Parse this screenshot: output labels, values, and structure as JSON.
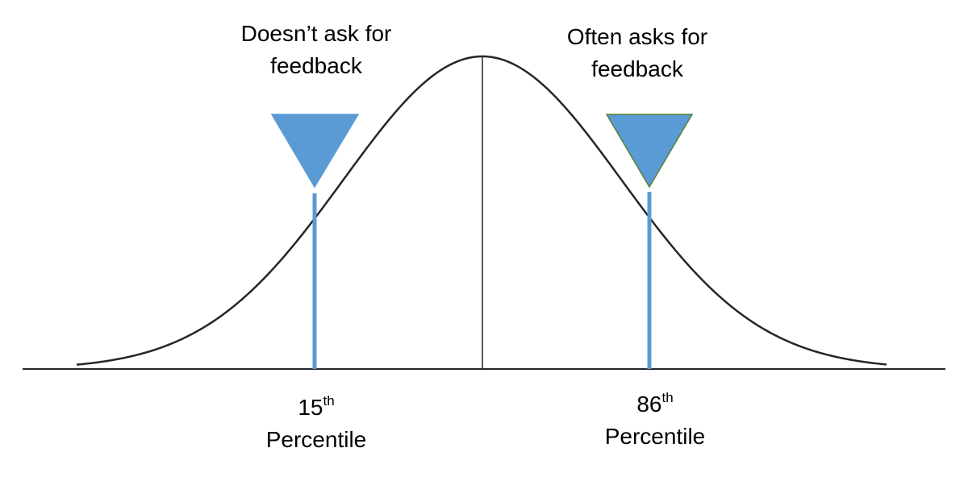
{
  "marker_left": {
    "label_line1": "Doesn’t ask for",
    "label_line2": "feedback",
    "value": "15",
    "sup": "th",
    "caption": "Percentile",
    "fill": "#5b9bd5",
    "stroke": "#5b9bd5"
  },
  "marker_right": {
    "label_line1": "Often asks for",
    "label_line2": "feedback",
    "value": "86",
    "sup": "th",
    "caption": "Percentile",
    "fill": "#5b9bd5",
    "stroke": "#548235"
  },
  "colors": {
    "curve": "#262626",
    "pointer_line": "#5b9bd5"
  }
}
